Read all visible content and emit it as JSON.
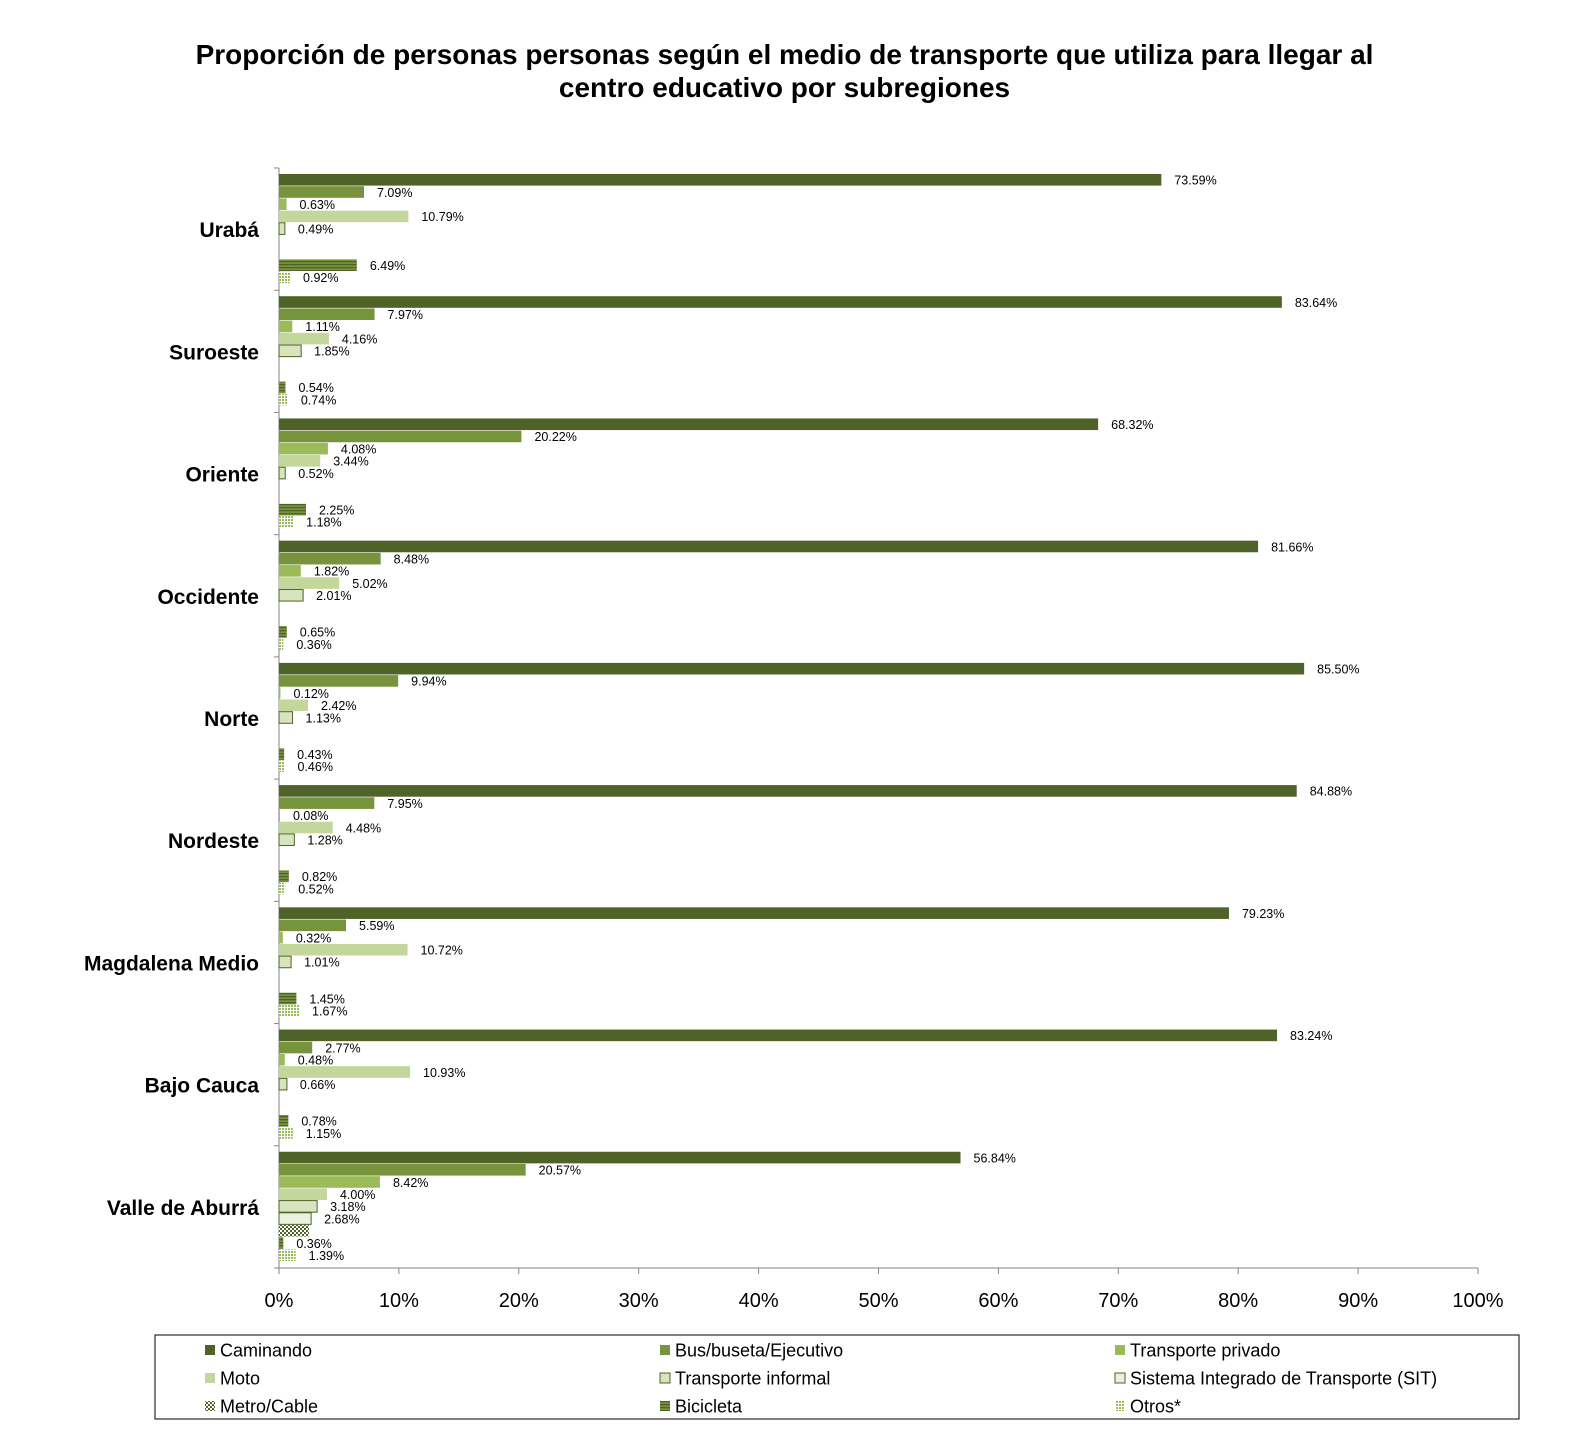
{
  "chart_data": {
    "type": "bar",
    "orientation": "horizontal",
    "title": "Proporción de personas personas según el  medio de transporte que utiliza para llegar al centro educativo por subregiones",
    "title_lines": [
      "Proporción de personas personas según el  medio de transporte que utiliza para llegar al",
      "centro educativo por subregiones"
    ],
    "xlim": [
      0,
      100
    ],
    "x_ticks": [
      "0%",
      "10%",
      "20%",
      "30%",
      "40%",
      "50%",
      "60%",
      "70%",
      "80%",
      "90%",
      "100%"
    ],
    "grid": false,
    "legend_position": "bottom",
    "categories": [
      "Urabá",
      "Suroeste",
      "Oriente",
      "Occidente",
      "Norte",
      "Nordeste",
      "Magdalena Medio",
      "Bajo Cauca",
      "Valle de Aburrá"
    ],
    "series": [
      {
        "name": "Caminando",
        "color": "#4f6228",
        "pattern": "solid",
        "values": [
          73.59,
          83.64,
          68.32,
          81.66,
          85.5,
          84.88,
          79.23,
          83.24,
          56.84
        ],
        "labels": [
          "73.59%",
          "83.64%",
          "68.32%",
          "81.66%",
          "85.50%",
          "84.88%",
          "79.23%",
          "83.24%",
          "56.84%"
        ]
      },
      {
        "name": "Bus/buseta/Ejecutivo",
        "color": "#77933c",
        "pattern": "solid",
        "values": [
          7.09,
          7.97,
          20.22,
          8.48,
          9.94,
          7.95,
          5.59,
          2.77,
          20.57
        ],
        "labels": [
          "7.09%",
          "7.97%",
          "20.22%",
          "8.48%",
          "9.94%",
          "7.95%",
          "5.59%",
          "2.77%",
          "20.57%"
        ]
      },
      {
        "name": "Transporte privado",
        "color": "#9bbb59",
        "pattern": "solid",
        "values": [
          0.63,
          1.11,
          4.08,
          1.82,
          0.12,
          0.08,
          0.32,
          0.48,
          8.42
        ],
        "labels": [
          "0.63%",
          "1.11%",
          "4.08%",
          "1.82%",
          "0.12%",
          "0.08%",
          "0.32%",
          "0.48%",
          "8.42%"
        ]
      },
      {
        "name": "Moto",
        "color": "#c3d69b",
        "pattern": "solid",
        "values": [
          10.79,
          4.16,
          3.44,
          5.02,
          2.42,
          4.48,
          10.72,
          10.93,
          4.0
        ],
        "labels": [
          "10.79%",
          "4.16%",
          "3.44%",
          "5.02%",
          "2.42%",
          "4.48%",
          "10.72%",
          "10.93%",
          "4.00%"
        ]
      },
      {
        "name": "Transporte informal",
        "color": "#d7e4bd",
        "pattern": "outlined",
        "values": [
          0.49,
          1.85,
          0.52,
          2.01,
          1.13,
          1.28,
          1.01,
          0.66,
          3.18
        ],
        "labels": [
          "0.49%",
          "1.85%",
          "0.52%",
          "2.01%",
          "1.13%",
          "1.28%",
          "1.01%",
          "0.66%",
          "3.18%"
        ]
      },
      {
        "name": "Sistema Integrado de Transporte (SIT)",
        "color": "#ebf1de",
        "pattern": "outlined",
        "values": [
          null,
          null,
          null,
          null,
          null,
          null,
          null,
          null,
          2.68
        ],
        "labels": [
          null,
          null,
          null,
          null,
          null,
          null,
          null,
          null,
          "2.68%"
        ]
      },
      {
        "name": "Metro/Cable",
        "color": "#4f6228",
        "pattern": "checker",
        "values": [
          null,
          null,
          null,
          null,
          null,
          null,
          null,
          null,
          2.5
        ],
        "labels": [
          null,
          null,
          null,
          null,
          null,
          null,
          null,
          null,
          null
        ]
      },
      {
        "name": "Bicicleta",
        "color": "#4f6228",
        "pattern": "hstripes",
        "values": [
          6.49,
          0.54,
          2.25,
          0.65,
          0.43,
          0.82,
          1.45,
          0.78,
          0.36
        ],
        "labels": [
          "6.49%",
          "0.54%",
          "2.25%",
          "0.65%",
          "0.43%",
          "0.82%",
          "1.45%",
          "0.78%",
          "0.36%"
        ]
      },
      {
        "name": "Otros*",
        "color": "#9bbb59",
        "pattern": "dots",
        "values": [
          0.92,
          0.74,
          1.18,
          0.36,
          0.46,
          0.52,
          1.67,
          1.15,
          1.39
        ],
        "labels": [
          "0.92%",
          "0.74%",
          "1.18%",
          "0.36%",
          "0.46%",
          "0.52%",
          "1.67%",
          "1.15%",
          "1.39%"
        ]
      }
    ]
  }
}
